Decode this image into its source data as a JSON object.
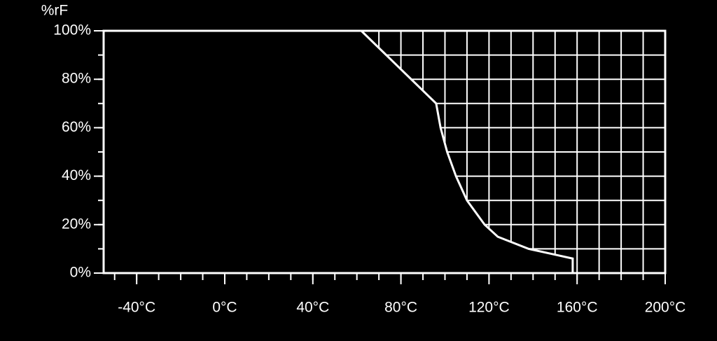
{
  "chart_data": {
    "type": "area",
    "ylabel": "%rF",
    "x": [
      62,
      96,
      98,
      101,
      105,
      110,
      118,
      124,
      138,
      148,
      158,
      158
    ],
    "values": [
      100,
      70,
      60,
      50,
      40,
      30,
      20,
      15,
      10,
      8,
      6,
      0
    ],
    "color": "#ffffff",
    "xlim": [
      -55,
      200
    ],
    "xticks": [
      {
        "value": -40,
        "label": "-40°C"
      },
      {
        "value": 0,
        "label": "0°C"
      },
      {
        "value": 40,
        "label": "40°C"
      },
      {
        "value": 80,
        "label": "80°C"
      },
      {
        "value": 120,
        "label": "120°C"
      },
      {
        "value": 160,
        "label": "160°C"
      },
      {
        "value": 200,
        "label": "200°C"
      }
    ],
    "ylim": [
      0,
      100
    ],
    "yticks": [
      {
        "value": 0,
        "label": "0%"
      },
      {
        "value": 20,
        "label": "20%"
      },
      {
        "value": 40,
        "label": "40%"
      },
      {
        "value": 60,
        "label": "60%"
      },
      {
        "value": 80,
        "label": "80%"
      },
      {
        "value": 100,
        "label": "100%"
      }
    ],
    "hatch": true
  }
}
